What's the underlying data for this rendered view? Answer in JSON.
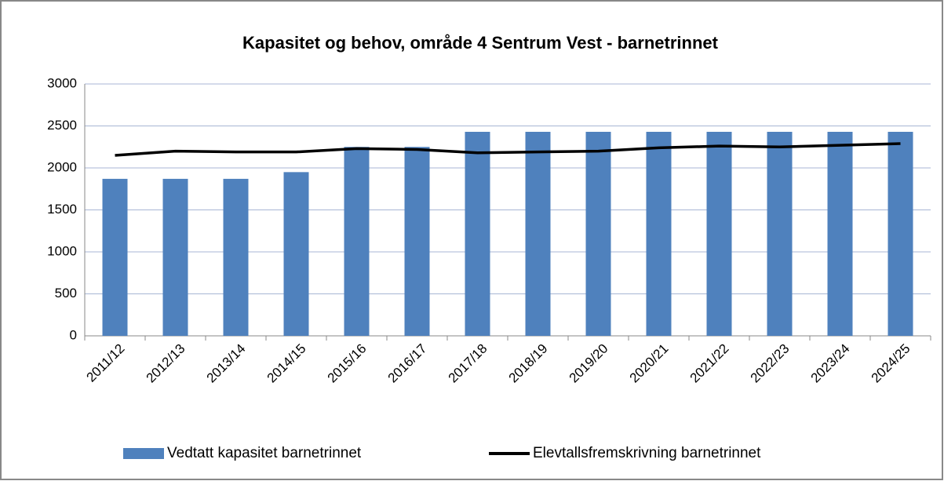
{
  "chart_data": {
    "type": "combo",
    "title": "Kapasitet og behov, område 4 Sentrum Vest - barnetrinnet",
    "categories": [
      "2011/12",
      "2012/13",
      "2013/14",
      "2014/15",
      "2015/16",
      "2016/17",
      "2017/18",
      "2018/19",
      "2019/20",
      "2020/21",
      "2021/22",
      "2022/23",
      "2023/24",
      "2024/25"
    ],
    "series": [
      {
        "name": "Vedtatt kapasitet barnetrinnet",
        "type": "bar",
        "color": "#4f81bd",
        "values": [
          1870,
          1870,
          1870,
          1950,
          2250,
          2250,
          2430,
          2430,
          2430,
          2430,
          2430,
          2430,
          2430,
          2430
        ]
      },
      {
        "name": "Elevtallsfremskrivning barnetrinnet",
        "type": "line",
        "color": "#000000",
        "values": [
          2150,
          2200,
          2190,
          2190,
          2230,
          2220,
          2180,
          2190,
          2200,
          2240,
          2260,
          2250,
          2270,
          2290
        ]
      }
    ],
    "ylim": [
      0,
      3000
    ],
    "yticks": [
      0,
      500,
      1000,
      1500,
      2000,
      2500,
      3000
    ],
    "grid": true,
    "legend": "bottom"
  }
}
